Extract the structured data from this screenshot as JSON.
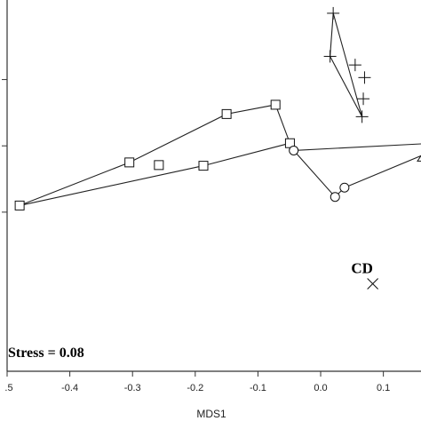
{
  "chart_data": {
    "type": "scatter",
    "title": "",
    "xlabel": "MDS1",
    "ylabel": "",
    "xlim": [
      -0.5,
      0.16
    ],
    "ylim": [
      -0.34,
      0.22
    ],
    "x_ticks": [
      -0.5,
      -0.4,
      -0.3,
      -0.2,
      -0.1,
      0.0,
      0.1
    ],
    "x_tick_labels": [
      ".5",
      "-0.4",
      "-0.3",
      "-0.2",
      "-0.1",
      "0.0",
      "0.1"
    ],
    "y_ticks": [
      0.1,
      0.0,
      -0.1
    ],
    "grid": false,
    "legend": "none",
    "colors": {
      "line": "#222222",
      "marker": "#111111",
      "frame": "#333333"
    },
    "stress_label": "Stress = 0.08",
    "series": [
      {
        "marker": "plus",
        "hull": true,
        "points": [
          [
            0.02,
            0.2
          ],
          [
            0.015,
            0.135
          ],
          [
            0.055,
            0.122
          ],
          [
            0.07,
            0.103
          ],
          [
            0.068,
            0.071
          ],
          [
            0.066,
            0.044
          ]
        ]
      },
      {
        "marker": "square",
        "hull": true,
        "points": [
          [
            -0.48,
            -0.09
          ],
          [
            -0.305,
            -0.025
          ],
          [
            -0.258,
            -0.029
          ],
          [
            -0.187,
            -0.03
          ],
          [
            -0.15,
            0.048
          ],
          [
            -0.072,
            0.062
          ],
          [
            -0.049,
            0.004
          ]
        ]
      },
      {
        "marker": "circle",
        "hull": true,
        "points": [
          [
            -0.043,
            -0.007
          ],
          [
            0.023,
            -0.077
          ],
          [
            0.038,
            -0.063
          ]
        ]
      },
      {
        "marker": "triangle",
        "hull": false,
        "points": [
          [
            0.16,
            -0.015
          ]
        ]
      },
      {
        "marker": "x",
        "hull": false,
        "label": "CD",
        "points": [
          [
            0.083,
            -0.208
          ]
        ]
      }
    ],
    "hull_edges": [
      [
        [
          -0.48,
          -0.09
        ],
        [
          -0.305,
          -0.025
        ],
        [
          -0.15,
          0.048
        ],
        [
          -0.072,
          0.062
        ],
        [
          -0.049,
          0.004
        ],
        [
          -0.187,
          -0.03
        ],
        [
          -0.48,
          -0.09
        ]
      ],
      [
        [
          0.02,
          0.2
        ],
        [
          0.066,
          0.044
        ],
        [
          0.015,
          0.135
        ],
        [
          0.02,
          0.2
        ]
      ],
      [
        [
          -0.043,
          -0.007
        ],
        [
          0.023,
          -0.077
        ],
        [
          0.038,
          -0.063
        ]
      ],
      [
        [
          -0.043,
          -0.007
        ],
        [
          0.16,
          0.003
        ]
      ],
      [
        [
          0.038,
          -0.063
        ],
        [
          0.16,
          -0.015
        ]
      ]
    ]
  }
}
